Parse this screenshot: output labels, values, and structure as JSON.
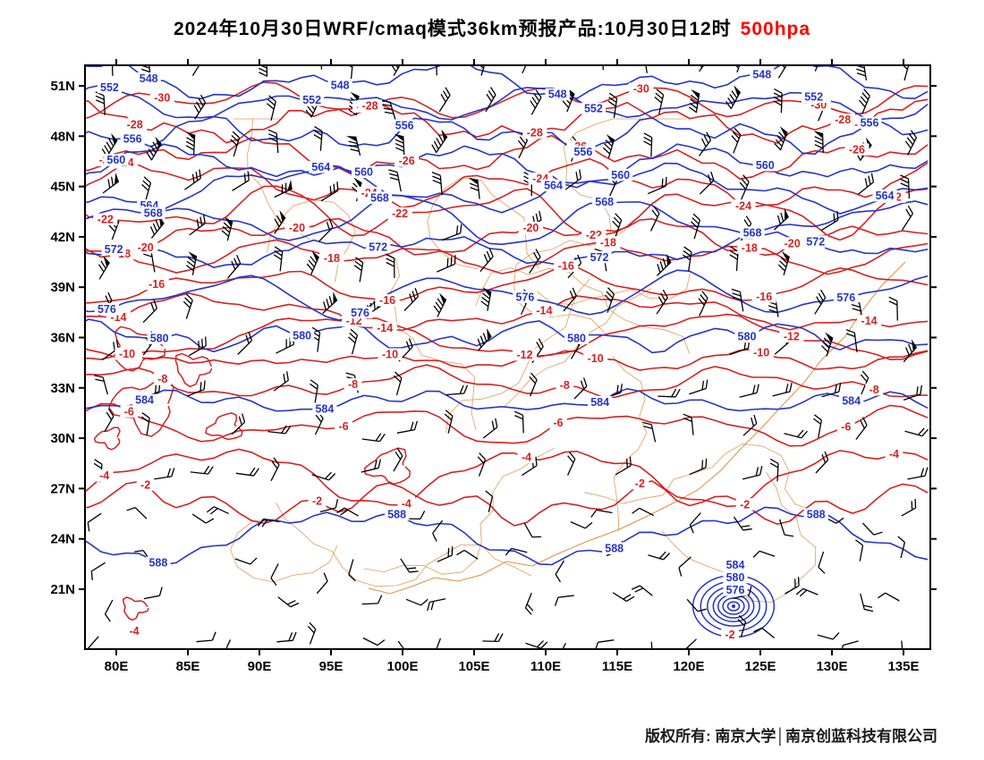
{
  "title": {
    "main": "2024年10月30日WRF/cmaq模式36km预报产品:10月30日12时",
    "level": "500hpa"
  },
  "footer": {
    "copyright": "版权所有: 南京大学│南京创蓝科技有限公司"
  },
  "colors": {
    "height_contour": "#2535c8",
    "temp_contour": "#d42222",
    "boundary": "#d98a3a",
    "barb": "#000000",
    "frame": "#000000",
    "level_label": "#ff0000"
  },
  "axes": {
    "lat_ticks": [
      "51N",
      "48N",
      "45N",
      "42N",
      "39N",
      "36N",
      "33N",
      "30N",
      "27N",
      "24N",
      "21N"
    ],
    "lon_ticks": [
      "80E",
      "85E",
      "90E",
      "95E",
      "100E",
      "105E",
      "110E",
      "115E",
      "120E",
      "125E",
      "130E",
      "135E"
    ]
  },
  "chart_data": {
    "type": "heatmap",
    "subtype": "contour-weather-map",
    "title": "2024年10月30日WRF/cmaq模式36km预报产品:10月30日12时 500hpa",
    "lon_range": [
      "80E",
      "135E"
    ],
    "lat_range": [
      "21N",
      "51N"
    ],
    "height_contours": {
      "units": "dam",
      "levels": [
        548,
        552,
        556,
        560,
        564,
        568,
        572,
        576,
        580,
        584,
        588
      ]
    },
    "temperature_contours": {
      "units": "C",
      "levels": [
        -30,
        -28,
        -26,
        -24,
        -22,
        -20,
        -18,
        -16,
        -14,
        -12,
        -10,
        -8,
        -6,
        -4,
        -2
      ]
    },
    "wind": "station wind barbs over full domain",
    "cyclone": {
      "lon": "123E",
      "lat": "20N",
      "height_labels": [
        "584",
        "580",
        "576"
      ],
      "temp_label": "-2"
    },
    "closed_low_label": "-4"
  }
}
